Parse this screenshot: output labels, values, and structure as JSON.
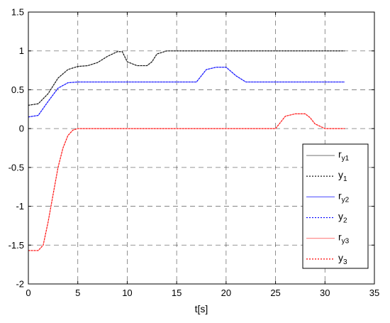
{
  "chart_data": {
    "type": "line",
    "xlabel": "t[s]",
    "ylabel": "",
    "title": "",
    "xlim": [
      0,
      35
    ],
    "ylim": [
      -2,
      1.5
    ],
    "xticks": [
      "0",
      "5",
      "10",
      "15",
      "20",
      "25",
      "30",
      "35"
    ],
    "yticks": [
      "-2",
      "-1.5",
      "-1",
      "-0.5",
      "0",
      "0.5",
      "1",
      "1.5"
    ],
    "grid": true,
    "legend_position": "lower-right",
    "series": [
      {
        "name": "r_y1",
        "label_main": "r",
        "label_sub": "y1",
        "color": "#808080",
        "style": "solid",
        "x": [
          0,
          1,
          2,
          3,
          4,
          5,
          6,
          7,
          8,
          9,
          9.5,
          10,
          11,
          12,
          12.5,
          13,
          14,
          15,
          17,
          20,
          25,
          30,
          32
        ],
        "y": [
          0.3,
          0.32,
          0.45,
          0.65,
          0.76,
          0.8,
          0.81,
          0.85,
          0.93,
          0.99,
          0.99,
          0.86,
          0.81,
          0.81,
          0.86,
          0.96,
          1.0,
          1.0,
          1.0,
          1.0,
          1.0,
          1.0,
          1.0
        ]
      },
      {
        "name": "y_1",
        "label_main": "y",
        "label_sub": "1",
        "color": "#000000",
        "style": "dashed",
        "x": [
          0,
          1,
          2,
          3,
          4,
          5,
          6,
          7,
          8,
          9,
          9.5,
          10,
          11,
          12,
          12.5,
          13,
          14,
          15,
          17,
          20,
          25,
          30,
          32
        ],
        "y": [
          0.3,
          0.32,
          0.45,
          0.65,
          0.76,
          0.8,
          0.81,
          0.85,
          0.93,
          0.99,
          0.99,
          0.86,
          0.81,
          0.81,
          0.86,
          0.96,
          1.0,
          1.0,
          1.0,
          1.0,
          1.0,
          1.0,
          1.0
        ]
      },
      {
        "name": "r_y2",
        "label_main": "r",
        "label_sub": "y2",
        "color": "#6a6aff",
        "style": "solid",
        "x": [
          0,
          1,
          2,
          3,
          4,
          5,
          10,
          15,
          17,
          17.5,
          18,
          19,
          20,
          21,
          22,
          25,
          30,
          32
        ],
        "y": [
          0.15,
          0.17,
          0.35,
          0.52,
          0.59,
          0.6,
          0.6,
          0.6,
          0.6,
          0.68,
          0.76,
          0.79,
          0.79,
          0.68,
          0.6,
          0.6,
          0.6,
          0.6
        ]
      },
      {
        "name": "y_2",
        "label_main": "y",
        "label_sub": "2",
        "color": "#0000ff",
        "style": "dashed",
        "x": [
          0,
          1,
          2,
          3,
          4,
          5,
          10,
          15,
          17,
          17.5,
          18,
          19,
          20,
          21,
          22,
          25,
          30,
          32
        ],
        "y": [
          0.15,
          0.17,
          0.35,
          0.52,
          0.59,
          0.6,
          0.6,
          0.6,
          0.6,
          0.68,
          0.76,
          0.79,
          0.79,
          0.68,
          0.6,
          0.6,
          0.6,
          0.6
        ]
      },
      {
        "name": "r_y3",
        "label_main": "r",
        "label_sub": "y3",
        "color": "#ff8080",
        "style": "solid",
        "x": [
          0,
          1,
          1.5,
          2,
          2.5,
          3,
          3.5,
          4,
          4.5,
          5,
          10,
          15,
          20,
          25,
          25.5,
          26,
          27,
          28,
          28.5,
          29,
          30,
          32
        ],
        "y": [
          -1.57,
          -1.57,
          -1.5,
          -1.2,
          -0.85,
          -0.5,
          -0.25,
          -0.09,
          -0.02,
          0,
          0,
          0,
          0,
          0,
          0.08,
          0.16,
          0.19,
          0.19,
          0.14,
          0.06,
          0,
          0
        ]
      },
      {
        "name": "y_3",
        "label_main": "y",
        "label_sub": "3",
        "color": "#ff0000",
        "style": "dashed",
        "x": [
          0,
          1,
          1.5,
          2,
          2.5,
          3,
          3.5,
          4,
          4.5,
          5,
          10,
          15,
          20,
          25,
          25.5,
          26,
          27,
          28,
          28.5,
          29,
          30,
          32
        ],
        "y": [
          -1.57,
          -1.57,
          -1.5,
          -1.2,
          -0.85,
          -0.5,
          -0.25,
          -0.09,
          -0.02,
          0,
          0,
          0,
          0,
          0,
          0.08,
          0.16,
          0.19,
          0.19,
          0.14,
          0.06,
          0,
          0
        ]
      }
    ]
  }
}
